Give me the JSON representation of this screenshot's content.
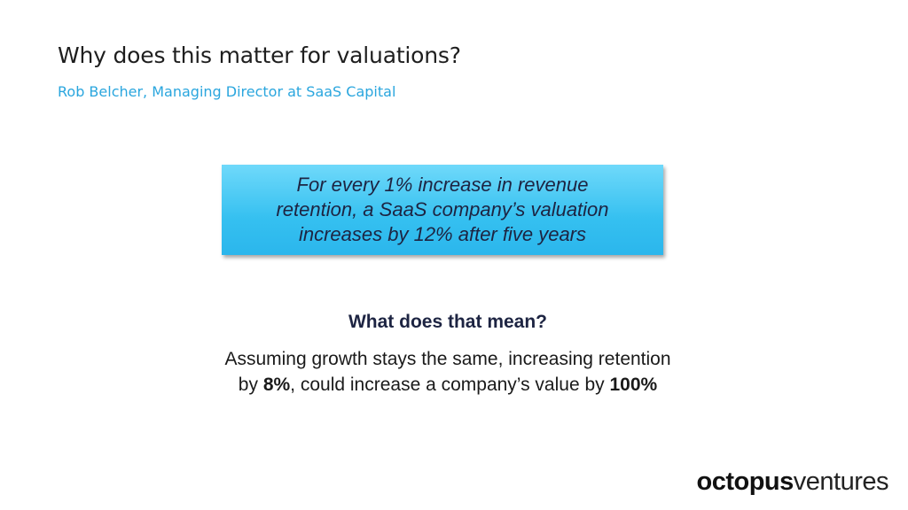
{
  "header": {
    "title": "Why does this matter for valuations?",
    "subtitle": "Rob Belcher, Managing Director at SaaS Capital"
  },
  "callout": {
    "lines": [
      "For every 1% increase in revenue",
      "retention, a SaaS company’s valuation",
      "increases by 12% after five years"
    ]
  },
  "explanation": {
    "heading": "What does that mean?",
    "line1": "Assuming growth stays the same, increasing retention",
    "line2": [
      "by ",
      "8%",
      ", could increase a company’s value by ",
      "100%"
    ]
  },
  "logo": {
    "brand": "octopus",
    "suffix": "ventures"
  }
}
